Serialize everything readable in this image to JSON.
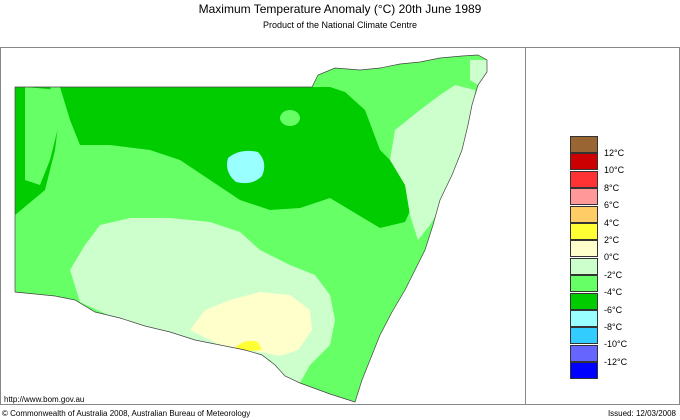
{
  "title": "Maximum Temperature Anomaly (°C)  20th June 1989",
  "subtitle": "Product of the National Climate Centre",
  "url": "http://www.bom.gov.au",
  "copyright": "© Commonwealth of Australia 2008, Australian Bureau of Meteorology",
  "issued": "Issued: 12/03/2008",
  "legend": {
    "colors": [
      "#996633",
      "#cc0000",
      "#ff3333",
      "#ff9999",
      "#ffcc66",
      "#ffff33",
      "#ffffcc",
      "#ccffcc",
      "#66ff66",
      "#00cc00",
      "#99ffff",
      "#33ccff",
      "#6666ff",
      "#0000ff"
    ],
    "labels": [
      "12°C",
      "10°C",
      "8°C",
      "6°C",
      "4°C",
      "2°C",
      "0°C",
      "-2°C",
      "-4°C",
      "-6°C",
      "-8°C",
      "-10°C",
      "-12°C"
    ]
  }
}
